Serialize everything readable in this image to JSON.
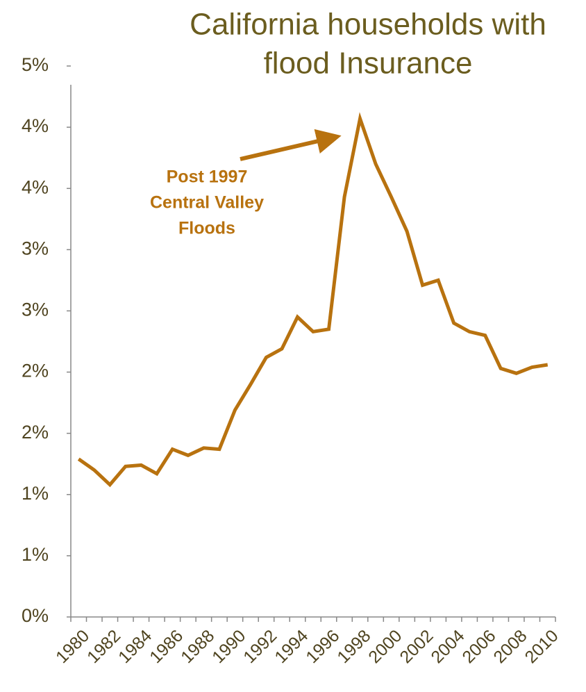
{
  "chart_data": {
    "type": "line",
    "title": [
      "California households with",
      "flood Insurance"
    ],
    "annotation": [
      "Post 1997",
      "Central Valley",
      "Floods"
    ],
    "categories": [
      "1980",
      null,
      "1982",
      null,
      "1984",
      null,
      "1986",
      null,
      "1988",
      null,
      "1990",
      null,
      "1992",
      null,
      "1994",
      null,
      "1996",
      null,
      "1998",
      null,
      "2000",
      null,
      "2002",
      null,
      "2004",
      null,
      "2006",
      null,
      "2008",
      null,
      "2010"
    ],
    "series": [
      {
        "color": "#b8720f",
        "values": [
          1.29,
          1.2,
          1.08,
          1.23,
          1.24,
          1.17,
          1.37,
          1.32,
          1.38,
          1.37,
          1.69,
          1.9,
          2.12,
          2.19,
          2.45,
          2.33,
          2.35,
          3.43,
          4.07,
          3.7,
          3.43,
          3.15,
          2.71,
          2.75,
          2.4,
          2.33,
          2.3,
          2.03,
          1.99,
          2.04,
          2.06
        ]
      }
    ],
    "ylim": [
      0,
      4.5
    ],
    "yticks": [
      {
        "value": 0,
        "label": "0%"
      },
      {
        "value": 0.5,
        "label": "1%"
      },
      {
        "value": 1,
        "label": "1%"
      },
      {
        "value": 1.5,
        "label": "2%"
      },
      {
        "value": 2,
        "label": "2%"
      },
      {
        "value": 2.5,
        "label": "3%"
      },
      {
        "value": 3,
        "label": "3%"
      },
      {
        "value": 3.5,
        "label": "4%"
      },
      {
        "value": 4,
        "label": "4%"
      },
      {
        "value": 4.5,
        "label": "5%"
      }
    ],
    "grid": false
  }
}
